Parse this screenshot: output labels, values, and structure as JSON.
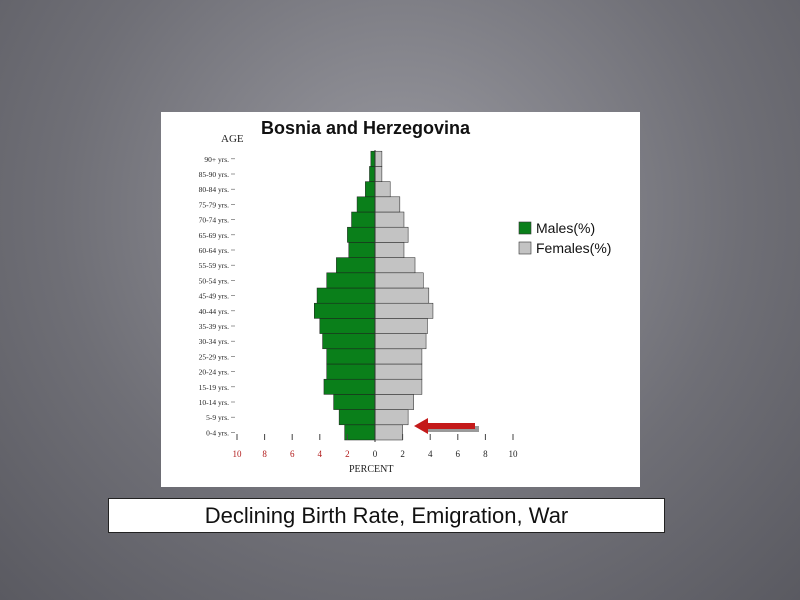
{
  "caption": "Declining Birth Rate, Emigration, War",
  "chart_data": {
    "type": "bar",
    "orientation": "horizontal",
    "title": "Bosnia and Herzegovina",
    "ylabel": "AGE",
    "xlabel": "PERCENT",
    "categories": [
      "0-4 yrs.",
      "5-9 yrs.",
      "10-14 yrs.",
      "15-19 yrs.",
      "20-24 yrs.",
      "25-29 yrs.",
      "30-34 yrs.",
      "35-39 yrs.",
      "40-44 yrs.",
      "45-49 yrs.",
      "50-54 yrs.",
      "55-59 yrs.",
      "60-64 yrs.",
      "65-69 yrs.",
      "70-74 yrs.",
      "75-79 yrs.",
      "80-84 yrs.",
      "85-90 yrs.",
      "90+ yrs."
    ],
    "series": [
      {
        "name": "Males(%)",
        "color": "#0a7f1a",
        "values": [
          2.2,
          2.6,
          3.0,
          3.7,
          3.5,
          3.5,
          3.8,
          4.0,
          4.4,
          4.2,
          3.5,
          2.8,
          1.9,
          2.0,
          1.7,
          1.3,
          0.7,
          0.4,
          0.3
        ]
      },
      {
        "name": "Females(%)",
        "color": "#c3c3c3",
        "values": [
          2.0,
          2.4,
          2.8,
          3.4,
          3.4,
          3.4,
          3.7,
          3.8,
          4.2,
          3.9,
          3.5,
          2.9,
          2.1,
          2.4,
          2.1,
          1.8,
          1.1,
          0.5,
          0.5
        ]
      }
    ],
    "x_ticks": [
      "10",
      "8",
      "6",
      "4",
      "2",
      "0",
      "2",
      "4",
      "6",
      "8",
      "10"
    ],
    "xlim": [
      -10,
      10
    ],
    "legend": "right",
    "annotation": {
      "type": "arrow",
      "target": "0-4 yrs.",
      "color": "#c41a1a"
    }
  }
}
